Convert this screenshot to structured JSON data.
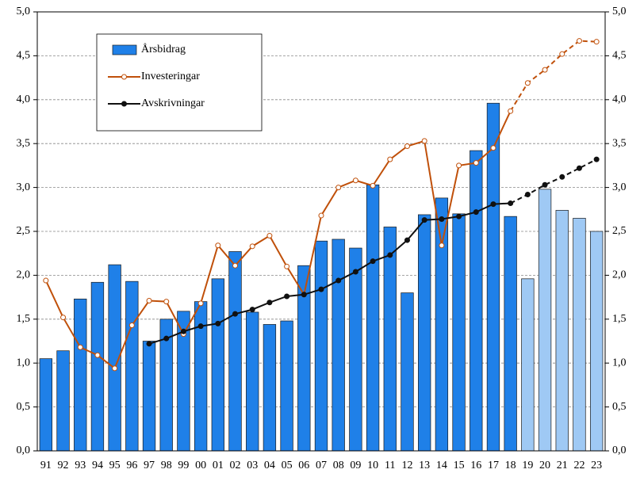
{
  "chart_data": {
    "type": "bar_line",
    "categories": [
      "91",
      "92",
      "93",
      "94",
      "95",
      "96",
      "97",
      "98",
      "99",
      "00",
      "01",
      "02",
      "03",
      "04",
      "05",
      "06",
      "07",
      "08",
      "09",
      "10",
      "11",
      "12",
      "13",
      "14",
      "15",
      "16",
      "17",
      "18",
      "19",
      "20",
      "21",
      "22",
      "23"
    ],
    "series": [
      {
        "name": "Årsbidrag",
        "type": "bar",
        "color": "#1f80e8",
        "colors": [
          "#1f80e8",
          "#1f80e8",
          "#1f80e8",
          "#1f80e8",
          "#1f80e8",
          "#1f80e8",
          "#1f80e8",
          "#1f80e8",
          "#1f80e8",
          "#1f80e8",
          "#1f80e8",
          "#1f80e8",
          "#1f80e8",
          "#1f80e8",
          "#1f80e8",
          "#1f80e8",
          "#1f80e8",
          "#1f80e8",
          "#1f80e8",
          "#1f80e8",
          "#1f80e8",
          "#1f80e8",
          "#1f80e8",
          "#1f80e8",
          "#1f80e8",
          "#1f80e8",
          "#1f80e8",
          "#1f80e8",
          "#9fc9f4",
          "#9fc9f4",
          "#9fc9f4",
          "#9fc9f4",
          "#9fc9f4"
        ],
        "values": [
          1.05,
          1.14,
          1.73,
          1.92,
          2.12,
          1.93,
          1.25,
          1.5,
          1.59,
          1.7,
          1.96,
          2.27,
          1.58,
          1.44,
          1.48,
          2.11,
          2.39,
          2.41,
          2.31,
          3.03,
          2.55,
          1.8,
          2.69,
          2.88,
          2.7,
          3.42,
          3.96,
          2.67,
          1.96,
          2.98,
          2.74,
          2.65,
          2.5
        ]
      },
      {
        "name": "Investeringar",
        "type": "line",
        "color": "#c0500a",
        "marker": "open",
        "dashed_from": "18",
        "values": [
          1.94,
          1.52,
          1.18,
          1.09,
          0.94,
          1.43,
          1.71,
          1.7,
          1.33,
          1.68,
          2.34,
          2.11,
          2.33,
          2.45,
          2.1,
          1.78,
          2.68,
          3.0,
          3.08,
          3.02,
          3.32,
          3.47,
          3.53,
          2.34,
          3.25,
          3.28,
          3.45,
          3.87,
          4.19,
          4.34,
          4.52,
          4.67,
          4.66
        ]
      },
      {
        "name": "Avskrivningar",
        "type": "line",
        "color": "#111111",
        "marker": "filled",
        "dashed_from": "18",
        "values": [
          null,
          null,
          null,
          null,
          null,
          null,
          1.22,
          1.28,
          1.36,
          1.42,
          1.45,
          1.56,
          1.61,
          1.69,
          1.76,
          1.78,
          1.84,
          1.94,
          2.04,
          2.16,
          2.23,
          2.4,
          2.63,
          2.64,
          2.67,
          2.72,
          2.81,
          2.82,
          2.92,
          3.03,
          3.12,
          3.22,
          3.32
        ]
      }
    ],
    "ylim": [
      0,
      5
    ],
    "yticks": [
      {
        "value": 0,
        "label": "0,0"
      },
      {
        "value": 0.5,
        "label": "0,5"
      },
      {
        "value": 1,
        "label": "1,0"
      },
      {
        "value": 1.5,
        "label": "1,5"
      },
      {
        "value": 2,
        "label": "2,0"
      },
      {
        "value": 2.5,
        "label": "2,5"
      },
      {
        "value": 3,
        "label": "3,0"
      },
      {
        "value": 3.5,
        "label": "3,5"
      },
      {
        "value": 4,
        "label": "4,0"
      },
      {
        "value": 4.5,
        "label": "4,5"
      },
      {
        "value": 5,
        "label": "5,0"
      }
    ],
    "y2lim": [
      0,
      5
    ],
    "y2ticks": [
      {
        "value": 0,
        "label": "0,0"
      },
      {
        "value": 0.5,
        "label": "0,5"
      },
      {
        "value": 1,
        "label": "1,0"
      },
      {
        "value": 1.5,
        "label": "1,5"
      },
      {
        "value": 2,
        "label": "2,0"
      },
      {
        "value": 2.5,
        "label": "2,5"
      },
      {
        "value": 3,
        "label": "3,0"
      },
      {
        "value": 3.5,
        "label": "3,5"
      },
      {
        "value": 4,
        "label": "4,0"
      },
      {
        "value": 4.5,
        "label": "4,5"
      },
      {
        "value": 5,
        "label": "5,0"
      }
    ],
    "grid": true,
    "legend": "upper left"
  }
}
